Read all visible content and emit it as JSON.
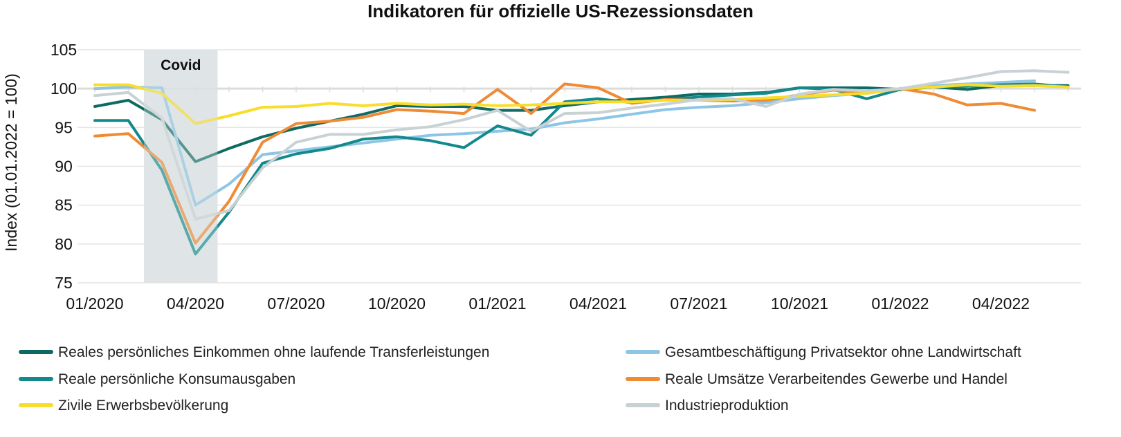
{
  "chart_data": {
    "type": "line",
    "title": "Indikatoren für offizielle US-Rezessionsdaten",
    "ylabel": "Index (01.01.2022 = 100)",
    "xlabel": "",
    "ylim": [
      75,
      105
    ],
    "yticks": [
      "75",
      "80",
      "85",
      "90",
      "95",
      "100",
      "105"
    ],
    "x": [
      "01/2020",
      "02/2020",
      "03/2020",
      "04/2020",
      "05/2020",
      "06/2020",
      "07/2020",
      "08/2020",
      "09/2020",
      "10/2020",
      "11/2020",
      "12/2020",
      "01/2021",
      "02/2021",
      "03/2021",
      "04/2021",
      "05/2021",
      "06/2021",
      "07/2021",
      "08/2021",
      "09/2021",
      "10/2021",
      "11/2021",
      "12/2021",
      "01/2022",
      "02/2022",
      "03/2022",
      "04/2022",
      "05/2022",
      "06/2022"
    ],
    "xticks": [
      "01/2020",
      "04/2020",
      "07/2020",
      "10/2020",
      "01/2021",
      "04/2021",
      "07/2021",
      "10/2021",
      "01/2022",
      "04/2022"
    ],
    "annotation": {
      "label": "Covid",
      "from": "03/2020",
      "to": "04/2020"
    },
    "grid": "horizontal",
    "legend_position": "bottom",
    "series": [
      {
        "name": "Reales persönliches Einkommen ohne laufende Transferleistungen",
        "color": "#0e6b63",
        "values": [
          97.7,
          98.5,
          96.0,
          90.6,
          92.3,
          93.8,
          94.9,
          95.8,
          96.7,
          97.8,
          97.7,
          97.7,
          97.2,
          97.2,
          97.8,
          98.3,
          98.6,
          98.9,
          99.3,
          99.3,
          99.5,
          100.1,
          100.1,
          100.1,
          99.9,
          100.2,
          99.9,
          100.4,
          100.4,
          100.4
        ]
      },
      {
        "name": "Gesamtbeschäftigung Privatsektor ohne Landwirtschaft",
        "color": "#8ec5e4",
        "values": [
          100.0,
          100.2,
          100.1,
          85.0,
          87.7,
          91.5,
          92.0,
          92.5,
          93.0,
          93.5,
          94.0,
          94.2,
          94.5,
          94.8,
          95.6,
          96.1,
          96.7,
          97.3,
          97.6,
          97.8,
          98.2,
          98.7,
          99.1,
          99.4,
          100.0,
          100.4,
          100.6,
          100.8,
          101.0,
          null
        ]
      },
      {
        "name": "Reale persönliche Konsumausgaben",
        "color": "#13898d",
        "values": [
          95.9,
          95.9,
          89.5,
          78.7,
          84.1,
          90.4,
          91.6,
          92.3,
          93.5,
          93.8,
          93.3,
          92.4,
          95.2,
          94.0,
          98.3,
          98.7,
          98.2,
          98.6,
          98.9,
          99.2,
          99.4,
          100.1,
          99.9,
          98.7,
          99.9,
          100.2,
          100.3,
          100.5,
          100.6,
          100.2
        ]
      },
      {
        "name": "Reale Umsätze Verarbeitendes Gewerbe und Handel",
        "color": "#ef8a35",
        "values": [
          93.9,
          94.2,
          90.5,
          80.1,
          85.5,
          93.1,
          95.5,
          95.8,
          96.3,
          97.3,
          97.1,
          96.8,
          99.9,
          96.8,
          100.6,
          100.1,
          98.1,
          98.6,
          98.5,
          98.4,
          98.5,
          99.2,
          99.8,
          99.4,
          100.0,
          99.3,
          97.9,
          98.1,
          97.2,
          null
        ]
      },
      {
        "name": "Zivile Erwerbsbevölkerung",
        "color": "#f8dd2b",
        "values": [
          100.5,
          100.5,
          99.4,
          95.5,
          96.5,
          97.6,
          97.7,
          98.1,
          97.8,
          98.1,
          97.9,
          98.0,
          97.8,
          97.9,
          98.1,
          98.3,
          98.3,
          98.5,
          98.5,
          98.6,
          98.8,
          99.0,
          99.2,
          99.4,
          100.0,
          100.2,
          100.5,
          100.3,
          100.4,
          100.2
        ]
      },
      {
        "name": "Industrieproduktion",
        "color": "#c8d1d3",
        "values": [
          99.1,
          99.5,
          96.2,
          83.2,
          84.3,
          89.8,
          93.1,
          94.1,
          94.1,
          94.7,
          95.1,
          96.0,
          97.2,
          94.5,
          96.8,
          96.9,
          97.5,
          98.0,
          98.6,
          98.7,
          97.7,
          99.3,
          99.9,
          99.7,
          100.0,
          100.7,
          101.4,
          102.2,
          102.3,
          102.1
        ]
      }
    ]
  }
}
